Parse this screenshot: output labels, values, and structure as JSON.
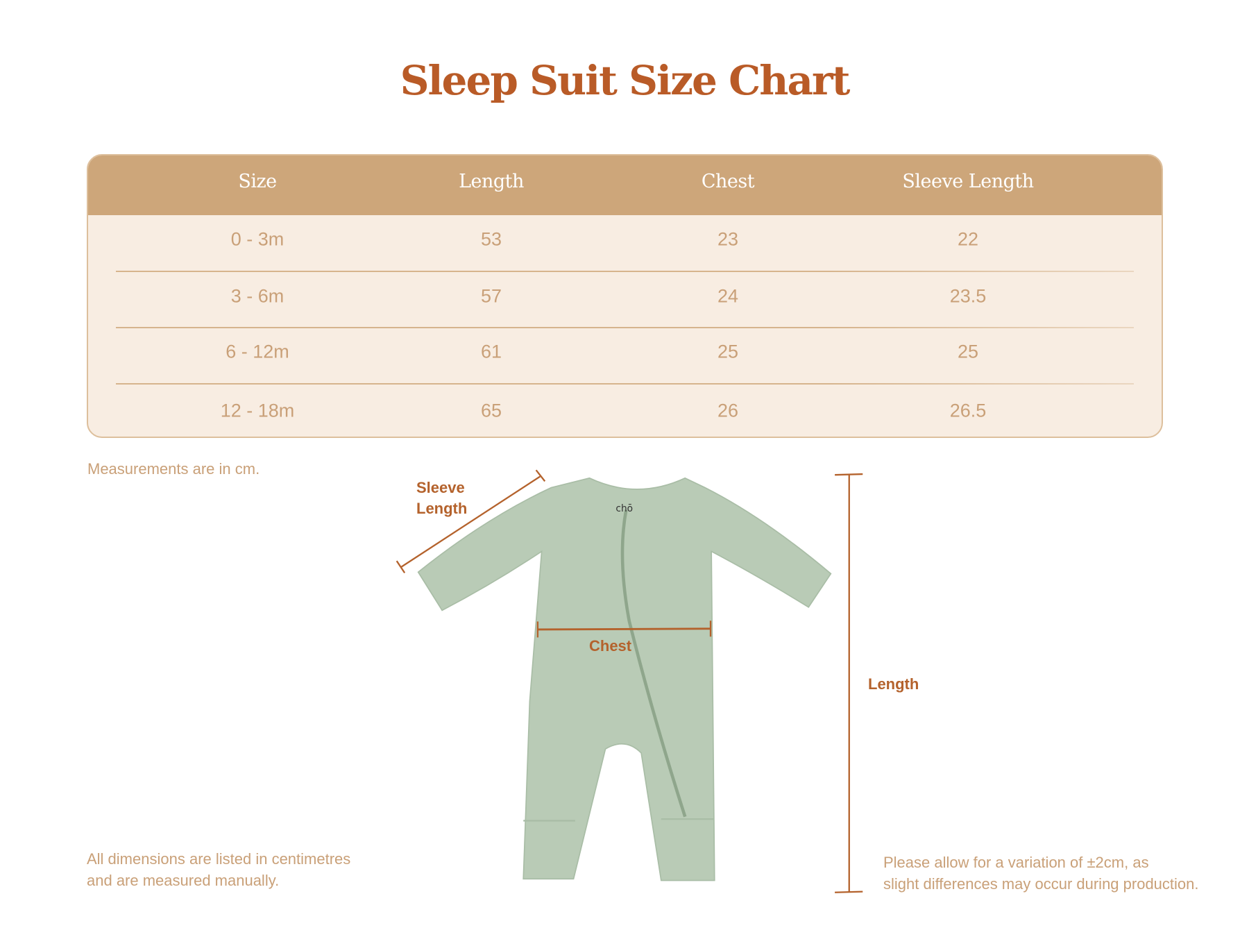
{
  "title": "Sleep Suit Size Chart",
  "table": {
    "headers": [
      "Size",
      "Length",
      "Chest",
      "Sleeve Length"
    ],
    "rows": [
      [
        "0 - 3m",
        "53",
        "23",
        "22"
      ],
      [
        "3 - 6m",
        "57",
        "24",
        "23.5"
      ],
      [
        "6 - 12m",
        "61",
        "25",
        "25"
      ],
      [
        "12 - 18m",
        "65",
        "26",
        "26.5"
      ]
    ]
  },
  "notes": {
    "units": "Measurements are in cm.",
    "dimensions_line1": "All dimensions are listed in centimetres",
    "dimensions_line2": "and are measured manually.",
    "variation_line1": "Please allow for a variation of ±2cm, as",
    "variation_line2": "slight differences may occur during production."
  },
  "diagram": {
    "sleeve_label_line1": "Sleeve",
    "sleeve_label_line2": "Length",
    "chest_label": "Chest",
    "length_label": "Length",
    "garment_logo": "chō"
  },
  "colors": {
    "title": "#b95b27",
    "header_bg": "#cda67a",
    "body_bg": "#f8ede2",
    "cell_text": "#c9a078",
    "annotation": "#b4622c",
    "garment": "#b9cbb6"
  }
}
